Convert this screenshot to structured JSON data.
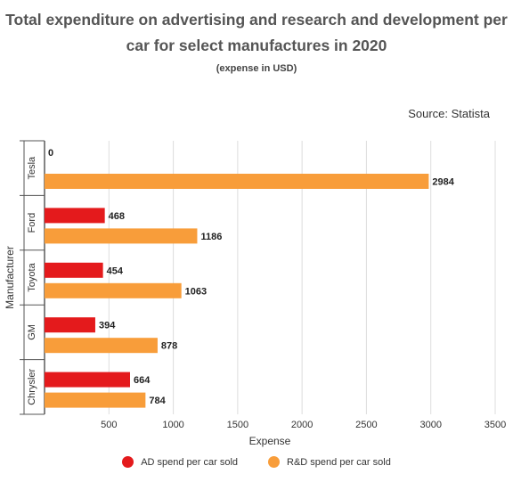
{
  "title": "Total expenditure on advertising and research and development per car for select manufactures in 2020",
  "subtitle": "(expense in USD)",
  "source": "Source: Statista",
  "colors": {
    "ad": "#e41a1c",
    "rd": "#f89d3a",
    "grid": "#dddddd",
    "axis": "#333333"
  },
  "chart_data": {
    "type": "bar",
    "orientation": "horizontal",
    "title": "Total expenditure on advertising and research and development per car for select manufactures in 2020",
    "subtitle": "(expense in USD)",
    "xlabel": "Expense",
    "ylabel": "Manufacturer",
    "categories": [
      "Tesla",
      "Ford",
      "Toyota",
      "GM",
      "Chrysler"
    ],
    "series": [
      {
        "name": "AD spend per car sold",
        "values": [
          0,
          468,
          454,
          394,
          664
        ],
        "color": "#e41a1c"
      },
      {
        "name": "R&D spend per car sold",
        "values": [
          2984,
          1186,
          1063,
          878,
          784
        ],
        "color": "#f89d3a"
      }
    ],
    "xlim": [
      0,
      3500
    ],
    "xticks": [
      500,
      1000,
      1500,
      2000,
      2500,
      3000,
      3500
    ],
    "grid": true,
    "legend": "bottom",
    "data_labels": true
  }
}
